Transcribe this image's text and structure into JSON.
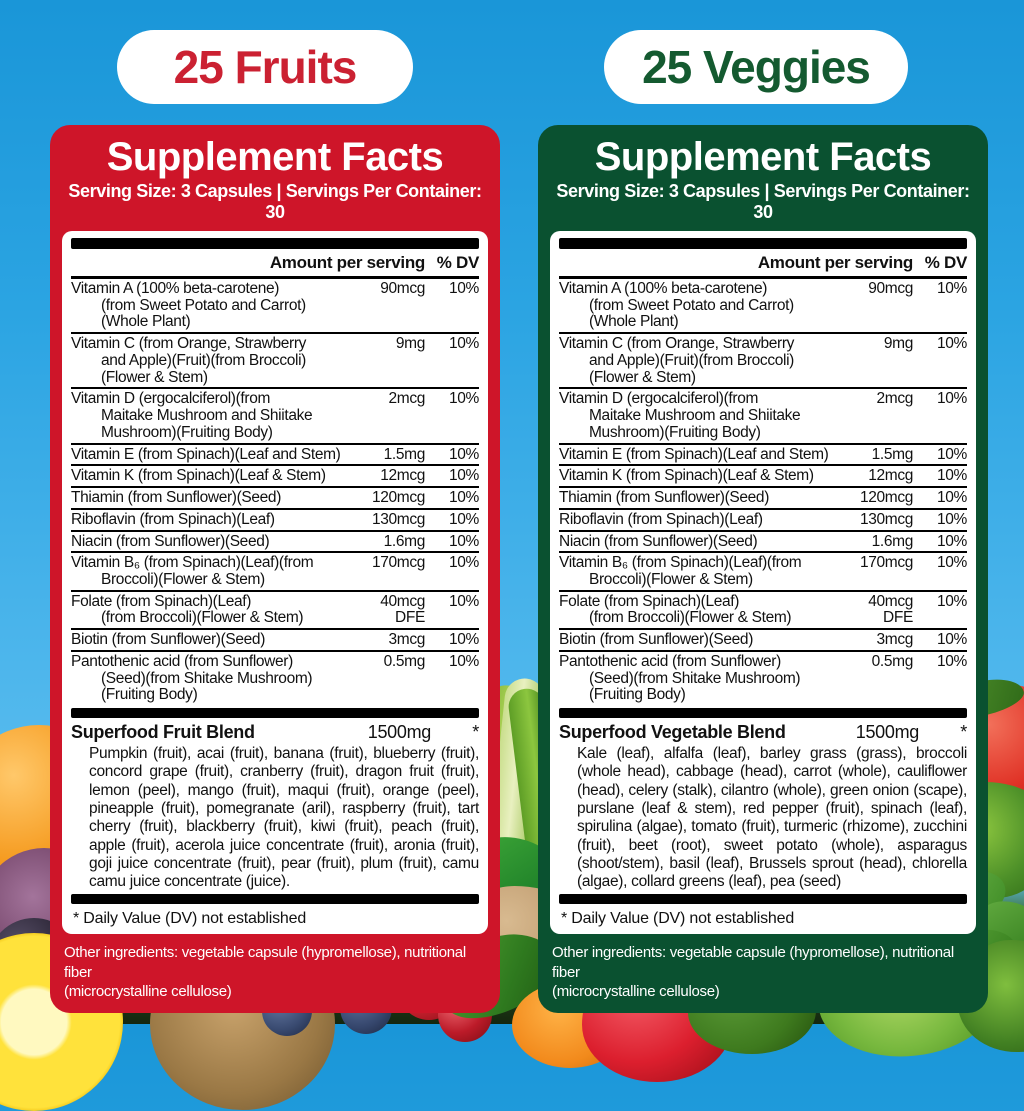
{
  "background": {
    "sky_top": "#1A96D8",
    "sky_bottom": "#6CC5F2"
  },
  "panels": [
    {
      "pill_label": "25 Fruits",
      "accent_color": "#CE1529",
      "pill_text_color": "#CB2132",
      "title": "Supplement Facts",
      "serving_line": "Serving Size:  3 Capsules | Servings Per Container:  30",
      "columns": {
        "amount": "Amount per serving",
        "dv": "% DV"
      },
      "rows": [
        {
          "name": "Vitamin A (100% beta-carotene)\n(from Sweet Potato and Carrot)\n(Whole Plant)",
          "amount": "90mcg",
          "dv": "10%"
        },
        {
          "name": "Vitamin C (from Orange, Strawberry\nand Apple)(Fruit)(from Broccoli)\n(Flower & Stem)",
          "amount": "9mg",
          "dv": "10%"
        },
        {
          "name": "Vitamin D (ergocalciferol)(from\nMaitake Mushroom and Shiitake\nMushroom)(Fruiting Body)",
          "amount": "2mcg",
          "dv": "10%"
        },
        {
          "name": "Vitamin E (from Spinach)(Leaf and Stem)",
          "amount": "1.5mg",
          "dv": "10%"
        },
        {
          "name": "Vitamin K (from Spinach)(Leaf & Stem)",
          "amount": "12mcg",
          "dv": "10%"
        },
        {
          "name": "Thiamin (from Sunflower)(Seed)",
          "amount": "120mcg",
          "dv": "10%"
        },
        {
          "name": "Riboflavin (from Spinach)(Leaf)",
          "amount": "130mcg",
          "dv": "10%"
        },
        {
          "name": "Niacin (from Sunflower)(Seed)",
          "amount": "1.6mg",
          "dv": "10%"
        },
        {
          "name": "Vitamin B₆ (from Spinach)(Leaf)(from\nBroccoli)(Flower & Stem)",
          "amount": "170mcg",
          "dv": "10%"
        },
        {
          "name": "Folate (from Spinach)(Leaf)\n(from Broccoli)(Flower & Stem)",
          "amount": "40mcg\nDFE",
          "dv": "10%"
        },
        {
          "name": "Biotin (from Sunflower)(Seed)",
          "amount": "3mcg",
          "dv": "10%"
        },
        {
          "name": "Pantothenic acid (from Sunflower)\n(Seed)(from Shitake Mushroom)\n(Fruiting Body)",
          "amount": "0.5mg",
          "dv": "10%"
        }
      ],
      "blend": {
        "title": "Superfood Fruit Blend",
        "amount": "1500mg",
        "dv": "*",
        "description": "Pumpkin (fruit), acai (fruit), banana (fruit), blueberry (fruit), concord grape (fruit), cranberry (fruit), dragon fruit (fruit), lemon (peel), mango (fruit), maqui (fruit), orange (peel), pineapple (fruit), pomegranate (aril), raspberry (fruit), tart cherry (fruit), blackberry (fruit), kiwi (fruit), peach (fruit), apple (fruit), acerola juice concentrate (fruit), aronia (fruit), goji juice concentrate (fruit), pear (fruit), plum (fruit), camu camu juice concentrate (juice)."
      },
      "footnote": "* Daily Value (DV) not established",
      "other_ingredients": "Other ingredients: vegetable capsule (hypromellose), nutritional fiber\n(microcrystalline cellulose)"
    },
    {
      "pill_label": "25 Veggies",
      "accent_color": "#0A5130",
      "pill_text_color": "#145A30",
      "title": "Supplement Facts",
      "serving_line": "Serving Size:  3 Capsules | Servings Per Container:  30",
      "columns": {
        "amount": "Amount per serving",
        "dv": "% DV"
      },
      "rows": [
        {
          "name": "Vitamin A (100% beta-carotene)\n(from Sweet Potato and Carrot)\n(Whole Plant)",
          "amount": "90mcg",
          "dv": "10%"
        },
        {
          "name": "Vitamin C (from Orange, Strawberry\nand Apple)(Fruit)(from Broccoli)\n(Flower & Stem)",
          "amount": "9mg",
          "dv": "10%"
        },
        {
          "name": "Vitamin D (ergocalciferol)(from\nMaitake Mushroom and Shiitake\nMushroom)(Fruiting Body)",
          "amount": "2mcg",
          "dv": "10%"
        },
        {
          "name": "Vitamin E (from Spinach)(Leaf and Stem)",
          "amount": "1.5mg",
          "dv": "10%"
        },
        {
          "name": "Vitamin K (from Spinach)(Leaf & Stem)",
          "amount": "12mcg",
          "dv": "10%"
        },
        {
          "name": "Thiamin (from Sunflower)(Seed)",
          "amount": "120mcg",
          "dv": "10%"
        },
        {
          "name": "Riboflavin (from Spinach)(Leaf)",
          "amount": "130mcg",
          "dv": "10%"
        },
        {
          "name": "Niacin (from Sunflower)(Seed)",
          "amount": "1.6mg",
          "dv": "10%"
        },
        {
          "name": "Vitamin B₆ (from Spinach)(Leaf)(from\nBroccoli)(Flower & Stem)",
          "amount": "170mcg",
          "dv": "10%"
        },
        {
          "name": "Folate (from Spinach)(Leaf)\n(from Broccoli)(Flower & Stem)",
          "amount": "40mcg\nDFE",
          "dv": "10%"
        },
        {
          "name": "Biotin (from Sunflower)(Seed)",
          "amount": "3mcg",
          "dv": "10%"
        },
        {
          "name": "Pantothenic acid (from Sunflower)\n(Seed)(from Shitake Mushroom)\n(Fruiting Body)",
          "amount": "0.5mg",
          "dv": "10%"
        }
      ],
      "blend": {
        "title": "Superfood Vegetable Blend",
        "amount": "1500mg",
        "dv": "*",
        "description": "Kale (leaf), alfalfa (leaf), barley grass (grass), broccoli (whole head), cabbage (head), carrot (whole), cauliflower (head), celery (stalk), cilantro (whole), green onion (scape), purslane (leaf & stem), red pepper (fruit), spinach (leaf), spirulina (algae), tomato (fruit), turmeric (rhizome), zucchini (fruit), beet (root), sweet potato (whole), asparagus (shoot/stem), basil (leaf), Brussels sprout (head), chlorella (algae), collard greens (leaf), pea (seed)"
      },
      "footnote": "* Daily Value (DV) not established",
      "other_ingredients": "Other ingredients: vegetable capsule (hypromellose), nutritional fiber\n(microcrystalline cellulose)"
    }
  ]
}
